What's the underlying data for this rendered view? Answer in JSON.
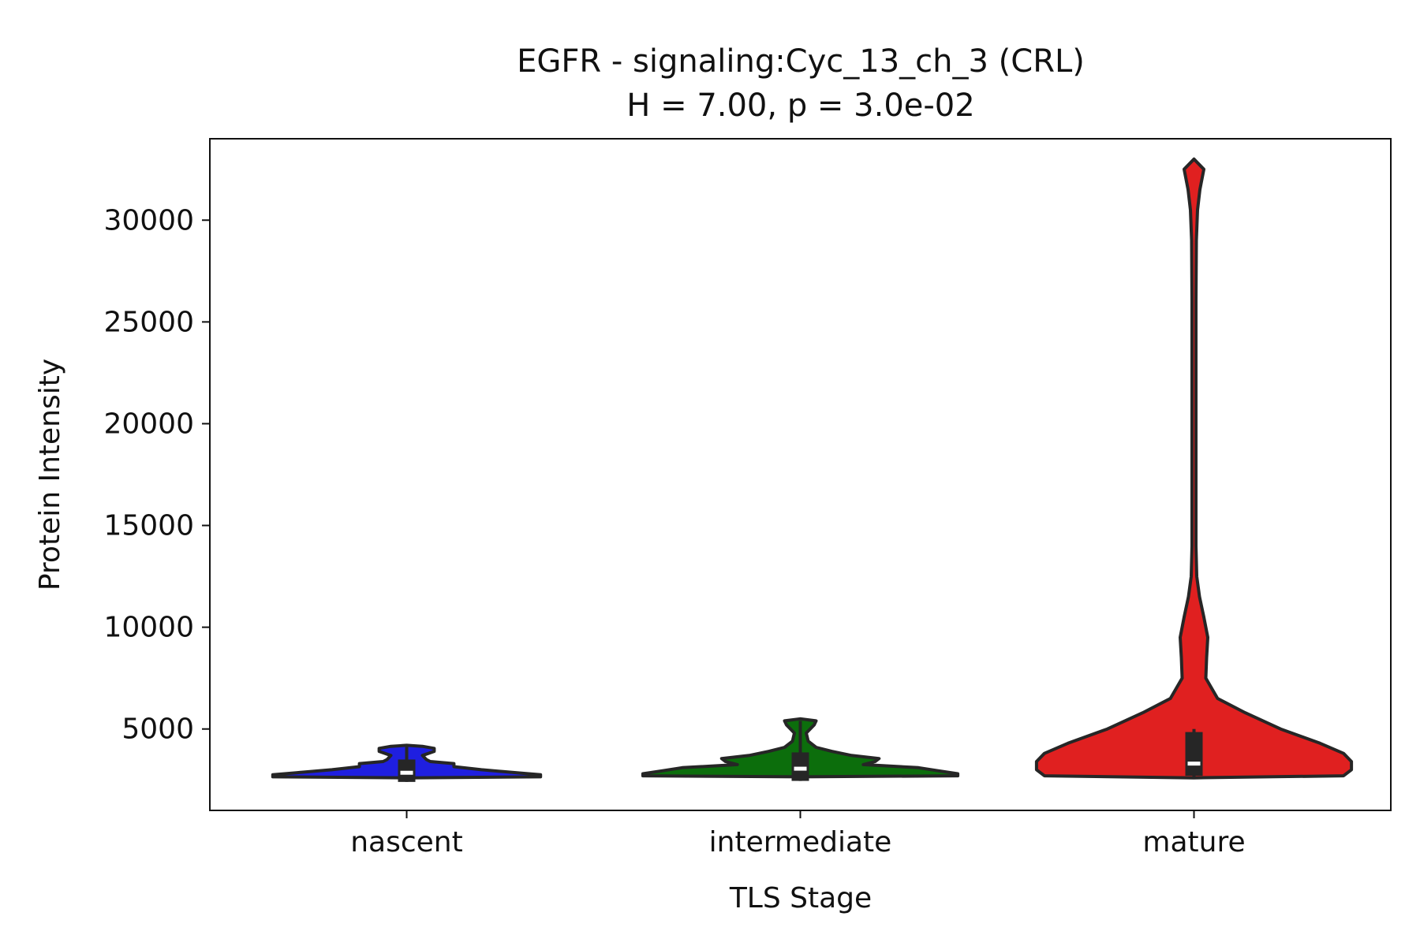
{
  "chart_data": {
    "type": "violin",
    "title": "EGFR - signaling:Cyc_13_ch_3 (CRL)",
    "subtitle": "H = 7.00, p = 3.0e-02",
    "xlabel": "TLS Stage",
    "ylabel": "Protein Intensity",
    "ylim": [
      1000,
      34000
    ],
    "yticks": [
      5000,
      10000,
      15000,
      20000,
      25000,
      30000
    ],
    "ytick_labels": [
      "5000",
      "10000",
      "15000",
      "20000",
      "25000",
      "30000"
    ],
    "categories": [
      "nascent",
      "intermediate",
      "mature"
    ],
    "series": [
      {
        "name": "nascent",
        "color": "#1f1fe0",
        "density_profile": [
          [
            2600,
            0.0
          ],
          [
            2650,
            0.34
          ],
          [
            2750,
            0.34
          ],
          [
            2850,
            0.28
          ],
          [
            3000,
            0.19
          ],
          [
            3150,
            0.12
          ],
          [
            3300,
            0.12
          ],
          [
            3400,
            0.06
          ],
          [
            3500,
            0.05
          ],
          [
            3700,
            0.04
          ],
          [
            3900,
            0.07
          ],
          [
            4050,
            0.07
          ],
          [
            4150,
            0.04
          ],
          [
            4200,
            0.0
          ]
        ],
        "q1": 2400,
        "median": 2850,
        "q3": 3500,
        "whisker_low": 2400,
        "whisker_high": 4150
      },
      {
        "name": "intermediate",
        "color": "#0c6e0c",
        "density_profile": [
          [
            2650,
            0.0
          ],
          [
            2700,
            0.4
          ],
          [
            2800,
            0.4
          ],
          [
            2950,
            0.35
          ],
          [
            3100,
            0.3
          ],
          [
            3250,
            0.16
          ],
          [
            3400,
            0.19
          ],
          [
            3550,
            0.2
          ],
          [
            3700,
            0.13
          ],
          [
            3900,
            0.08
          ],
          [
            4100,
            0.04
          ],
          [
            4400,
            0.02
          ],
          [
            4800,
            0.015
          ],
          [
            5200,
            0.035
          ],
          [
            5400,
            0.04
          ],
          [
            5500,
            0.0
          ]
        ],
        "q1": 2450,
        "median": 3050,
        "q3": 3850,
        "whisker_low": 2450,
        "whisker_high": 5400
      },
      {
        "name": "mature",
        "color": "#e02020",
        "density_profile": [
          [
            2600,
            0.0
          ],
          [
            2700,
            0.38
          ],
          [
            3000,
            0.4
          ],
          [
            3400,
            0.4
          ],
          [
            3800,
            0.38
          ],
          [
            4300,
            0.32
          ],
          [
            5000,
            0.22
          ],
          [
            5800,
            0.13
          ],
          [
            6500,
            0.06
          ],
          [
            7500,
            0.03
          ],
          [
            8500,
            0.032
          ],
          [
            9500,
            0.035
          ],
          [
            10500,
            0.025
          ],
          [
            11500,
            0.014
          ],
          [
            12500,
            0.007
          ],
          [
            14000,
            0.005
          ],
          [
            20000,
            0.005
          ],
          [
            26000,
            0.005
          ],
          [
            29000,
            0.006
          ],
          [
            30500,
            0.009
          ],
          [
            31500,
            0.015
          ],
          [
            32500,
            0.025
          ],
          [
            33000,
            0.0
          ]
        ],
        "q1": 2700,
        "median": 3300,
        "q3": 4850,
        "whisker_low": 2650,
        "whisker_high": 5000
      }
    ]
  }
}
